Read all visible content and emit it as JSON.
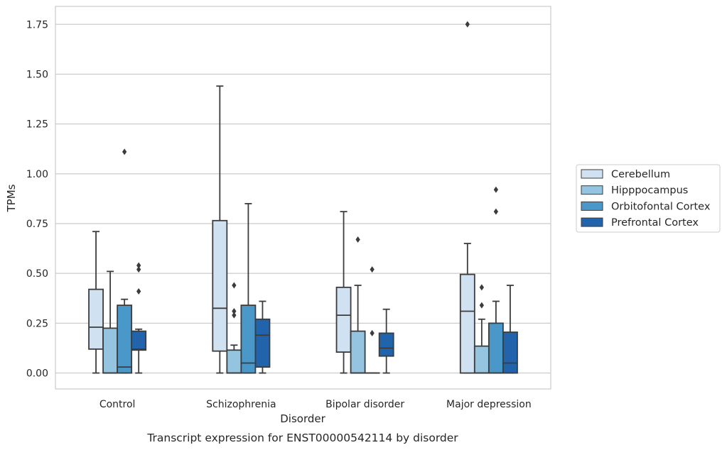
{
  "caption": "Transcript expression for ENST00000542114 by disorder",
  "chart_data": {
    "type": "box",
    "xlabel": "Disorder",
    "ylabel": "TPMs",
    "ylim": [
      -0.08,
      1.84
    ],
    "yticks": [
      "0.00",
      "0.25",
      "0.50",
      "0.75",
      "1.00",
      "1.25",
      "1.50",
      "1.75"
    ],
    "grid": "horizontal",
    "legend_position": "right",
    "categories": [
      "Control",
      "Schizophrenia",
      "Bipolar disorder",
      "Major depression"
    ],
    "series": [
      {
        "name": "Cerebellum",
        "color": "#d0e1f2",
        "boxes": [
          {
            "whislo": 0.0,
            "q1": 0.12,
            "med": 0.23,
            "q3": 0.42,
            "whishi": 0.71,
            "fliers": []
          },
          {
            "whislo": 0.0,
            "q1": 0.11,
            "med": 0.325,
            "q3": 0.765,
            "whishi": 1.44,
            "fliers": []
          },
          {
            "whislo": 0.0,
            "q1": 0.105,
            "med": 0.29,
            "q3": 0.43,
            "whishi": 0.81,
            "fliers": []
          },
          {
            "whislo": 0.0,
            "q1": 0.0,
            "med": 0.31,
            "q3": 0.495,
            "whishi": 0.65,
            "fliers": [
              1.75
            ]
          }
        ]
      },
      {
        "name": "Hipppocampus",
        "color": "#94c4df",
        "boxes": [
          {
            "whislo": 0.0,
            "q1": 0.0,
            "med": 0.0,
            "q3": 0.225,
            "whishi": 0.51,
            "fliers": []
          },
          {
            "whislo": 0.0,
            "q1": 0.0,
            "med": 0.0,
            "q3": 0.115,
            "whishi": 0.14,
            "fliers": [
              0.29,
              0.31,
              0.44
            ]
          },
          {
            "whislo": 0.0,
            "q1": 0.0,
            "med": 0.0,
            "q3": 0.21,
            "whishi": 0.44,
            "fliers": [
              0.67
            ]
          },
          {
            "whislo": 0.0,
            "q1": 0.0,
            "med": 0.0,
            "q3": 0.135,
            "whishi": 0.27,
            "fliers": [
              0.34,
              0.43
            ]
          }
        ]
      },
      {
        "name": "Orbitofontal Cortex",
        "color": "#4a98c9",
        "boxes": [
          {
            "whislo": 0.0,
            "q1": 0.0,
            "med": 0.03,
            "q3": 0.34,
            "whishi": 0.37,
            "fliers": [
              1.11
            ]
          },
          {
            "whislo": 0.0,
            "q1": 0.0,
            "med": 0.05,
            "q3": 0.34,
            "whishi": 0.85,
            "fliers": []
          },
          {
            "whislo": 0.0,
            "q1": 0.0,
            "med": 0.0,
            "q3": 0.0,
            "whishi": 0.0,
            "fliers": [
              0.2,
              0.52
            ]
          },
          {
            "whislo": 0.0,
            "q1": 0.0,
            "med": 0.0,
            "q3": 0.25,
            "whishi": 0.36,
            "fliers": [
              0.81,
              0.92
            ]
          }
        ]
      },
      {
        "name": "Prefrontal Cortex",
        "color": "#2164ab",
        "boxes": [
          {
            "whislo": 0.0,
            "q1": 0.115,
            "med": 0.12,
            "q3": 0.21,
            "whishi": 0.22,
            "fliers": [
              0.41,
              0.52,
              0.54
            ]
          },
          {
            "whislo": 0.0,
            "q1": 0.03,
            "med": 0.19,
            "q3": 0.27,
            "whishi": 0.36,
            "fliers": []
          },
          {
            "whislo": 0.0,
            "q1": 0.085,
            "med": 0.125,
            "q3": 0.2,
            "whishi": 0.32,
            "fliers": []
          },
          {
            "whislo": 0.0,
            "q1": 0.0,
            "med": 0.05,
            "q3": 0.205,
            "whishi": 0.44,
            "fliers": []
          }
        ]
      }
    ]
  }
}
